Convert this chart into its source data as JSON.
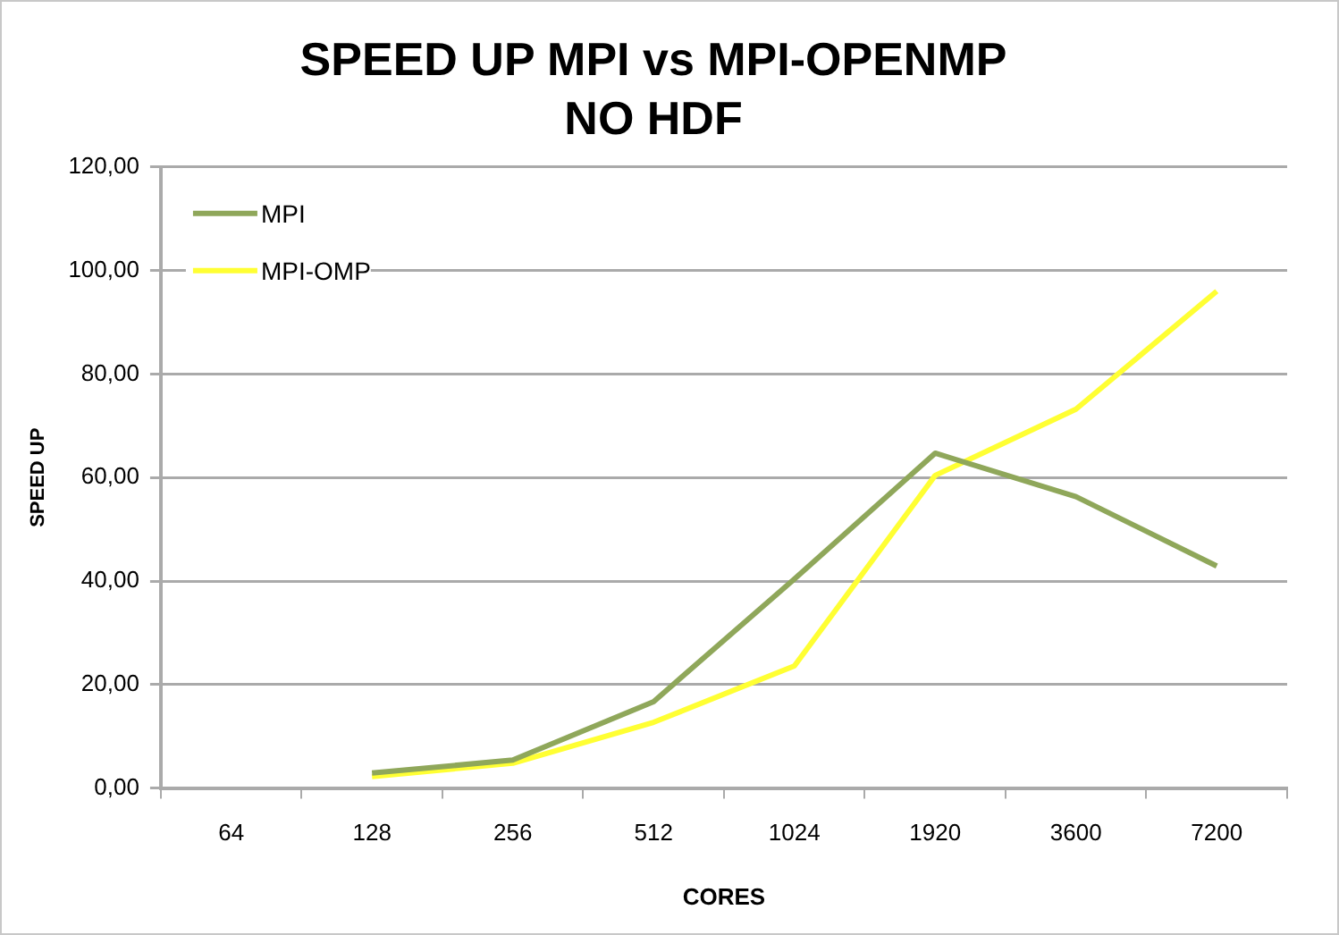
{
  "chart_data": {
    "type": "line",
    "title": "SPEED UP MPI vs MPI-OPENMP",
    "subtitle": "NO HDF",
    "xlabel": "CORES",
    "ylabel": "SPEED UP",
    "categories": [
      "64",
      "128",
      "256",
      "512",
      "1024",
      "1920",
      "3600",
      "7200"
    ],
    "series": [
      {
        "name": "MPI",
        "color": "#8fa75a",
        "values": [
          null,
          2.9,
          5.4,
          16.7,
          40.4,
          64.7,
          56.3,
          42.9
        ]
      },
      {
        "name": "MPI-OMP",
        "color": "#ffff33",
        "values": [
          null,
          2.2,
          4.8,
          12.7,
          23.6,
          60.4,
          73.2,
          96.0
        ]
      }
    ],
    "ylim": [
      0,
      120
    ],
    "yticks": [
      {
        "value": 0,
        "label": "0,00"
      },
      {
        "value": 20,
        "label": "20,00"
      },
      {
        "value": 40,
        "label": "40,00"
      },
      {
        "value": 60,
        "label": "60,00"
      },
      {
        "value": 80,
        "label": "80,00"
      },
      {
        "value": 100,
        "label": "100,00"
      },
      {
        "value": 120,
        "label": "120,00"
      }
    ],
    "grid": "y",
    "legend": "top left",
    "marker": "none",
    "line_style": "solid"
  }
}
